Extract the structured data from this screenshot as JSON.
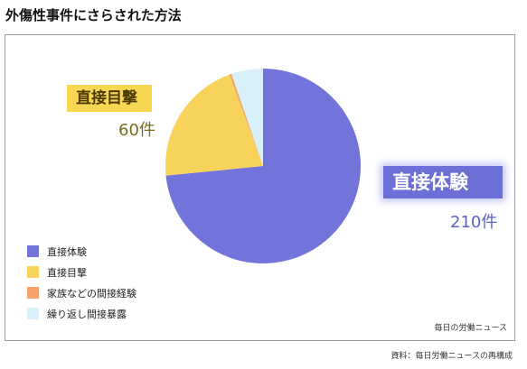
{
  "page": {
    "title": "外傷性事件にさらされた方法"
  },
  "chart_data": {
    "type": "pie",
    "slices": [
      {
        "label": "直接体験",
        "value": 210,
        "color": "#7274d9"
      },
      {
        "label": "直接目撃",
        "value": 60,
        "color": "#f8d35b"
      },
      {
        "label": "家族などの間接経験",
        "value": 1,
        "color": "#f6a26a"
      },
      {
        "label": "繰り返し間接暴露",
        "value": 15,
        "color": "#d8f0fa"
      }
    ],
    "callouts": {
      "direct_experience": {
        "label": "直接体験",
        "value_text": "210件"
      },
      "direct_witness": {
        "label": "直接目撃",
        "value_text": "60件"
      }
    },
    "legend_position": "left"
  },
  "credit": {
    "inner": "毎日の労働ニュース",
    "source": "資料：毎日労働ニュースの再構成"
  }
}
